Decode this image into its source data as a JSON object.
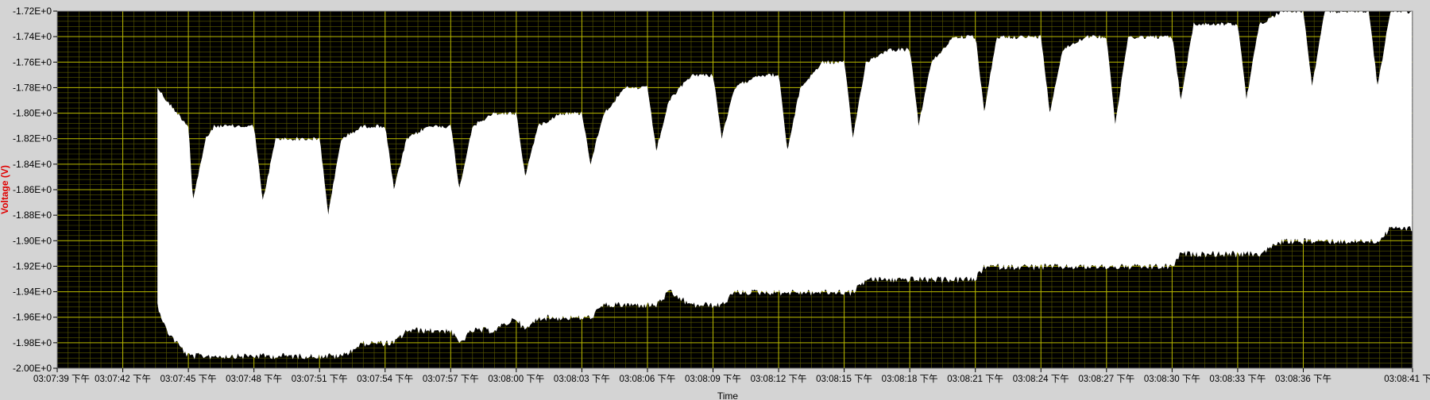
{
  "chart_data": {
    "type": "area",
    "title": "",
    "xlabel": "Time",
    "ylabel": "Voltage (V)",
    "ylim": [
      -2.0,
      -1.72
    ],
    "y_tick_labels": [
      "-1.72E+0",
      "-1.74E+0",
      "-1.76E+0",
      "-1.78E+0",
      "-1.80E+0",
      "-1.82E+0",
      "-1.84E+0",
      "-1.86E+0",
      "-1.88E+0",
      "-1.90E+0",
      "-1.92E+0",
      "-1.94E+0",
      "-1.96E+0",
      "-1.98E+0",
      "-2.00E+0"
    ],
    "x_tick_labels": [
      "03:07:39 下午",
      "03:07:42 下午",
      "03:07:45 下午",
      "03:07:48 下午",
      "03:07:51 下午",
      "03:07:54 下午",
      "03:07:57 下午",
      "03:08:00 下午",
      "03:08:03 下午",
      "03:08:06 下午",
      "03:08:09 下午",
      "03:08:12 下午",
      "03:08:15 下午",
      "03:08:18 下午",
      "03:08:21 下午",
      "03:08:24 下午",
      "03:08:27 下午",
      "03:08:30 下午",
      "03:08:33 下午",
      "03:08:36 下午",
      "03:08:41 下"
    ],
    "grid": true,
    "colors": {
      "plot_background": "#000000",
      "signal": "#ffffff",
      "major_grid": "#b8b800",
      "minor_grid": "#5a5a00",
      "frame": "#d4d4d4",
      "ylabel_color": "#e00000"
    },
    "series": [
      {
        "name": "",
        "x_seconds": [
          4.6,
          5.0,
          5.5,
          6.0,
          6.2,
          6.8,
          7.2,
          7.8,
          9.0,
          9.4,
          10.0,
          11.0,
          12.0,
          12.4,
          13.0,
          14.0,
          15.0,
          15.4,
          16.0,
          17.0,
          18.0,
          18.4,
          19.0,
          20.0,
          21.0,
          21.4,
          22.0,
          23.0,
          24.0,
          24.4,
          25.0,
          26.0,
          27.0,
          27.4,
          28.0,
          29.0,
          30.0,
          30.4,
          31.0,
          32.0,
          33.0,
          33.4,
          34.0,
          35.0,
          36.0,
          36.4,
          37.0,
          38.0,
          39.0,
          39.4,
          40.0,
          41.0,
          42.0,
          42.4,
          43.0,
          44.0,
          45.0,
          45.4,
          46.0,
          47.0,
          48.0,
          48.4,
          49.0,
          50.0,
          51.0,
          51.4,
          52.0,
          53.0,
          54.0,
          54.4,
          55.0,
          56.0,
          57.0,
          57.4,
          58.0,
          59.0,
          60.0,
          60.4,
          61.0,
          62.0
        ],
        "upper": [
          -1.78,
          -1.79,
          -1.8,
          -1.81,
          -1.87,
          -1.82,
          -1.81,
          -1.81,
          -1.81,
          -1.87,
          -1.82,
          -1.82,
          -1.82,
          -1.88,
          -1.82,
          -1.81,
          -1.81,
          -1.86,
          -1.82,
          -1.81,
          -1.81,
          -1.86,
          -1.81,
          -1.8,
          -1.8,
          -1.85,
          -1.81,
          -1.8,
          -1.8,
          -1.84,
          -1.8,
          -1.78,
          -1.78,
          -1.83,
          -1.79,
          -1.77,
          -1.77,
          -1.82,
          -1.78,
          -1.77,
          -1.77,
          -1.83,
          -1.78,
          -1.76,
          -1.76,
          -1.82,
          -1.76,
          -1.75,
          -1.75,
          -1.81,
          -1.76,
          -1.74,
          -1.74,
          -1.8,
          -1.74,
          -1.74,
          -1.74,
          -1.8,
          -1.75,
          -1.74,
          -1.74,
          -1.81,
          -1.74,
          -1.74,
          -1.74,
          -1.79,
          -1.73,
          -1.73,
          -1.73,
          -1.79,
          -1.73,
          -1.72,
          -1.72,
          -1.78,
          -1.72,
          -1.72,
          -1.72,
          -1.78,
          -1.72,
          -1.72
        ],
        "lower": [
          -1.95,
          -1.97,
          -1.98,
          -1.99,
          -1.99,
          -1.99,
          -1.99,
          -1.99,
          -1.99,
          -1.99,
          -1.99,
          -1.99,
          -1.99,
          -1.99,
          -1.99,
          -1.98,
          -1.98,
          -1.98,
          -1.97,
          -1.97,
          -1.97,
          -1.98,
          -1.97,
          -1.97,
          -1.96,
          -1.97,
          -1.96,
          -1.96,
          -1.96,
          -1.96,
          -1.95,
          -1.95,
          -1.95,
          -1.95,
          -1.94,
          -1.95,
          -1.95,
          -1.95,
          -1.94,
          -1.94,
          -1.94,
          -1.94,
          -1.94,
          -1.94,
          -1.94,
          -1.94,
          -1.93,
          -1.93,
          -1.93,
          -1.93,
          -1.93,
          -1.93,
          -1.93,
          -1.92,
          -1.92,
          -1.92,
          -1.92,
          -1.92,
          -1.92,
          -1.92,
          -1.92,
          -1.92,
          -1.92,
          -1.92,
          -1.92,
          -1.91,
          -1.91,
          -1.91,
          -1.91,
          -1.91,
          -1.91,
          -1.9,
          -1.9,
          -1.9,
          -1.9,
          -1.9,
          -1.9,
          -1.9,
          -1.89,
          -1.89
        ]
      }
    ]
  }
}
